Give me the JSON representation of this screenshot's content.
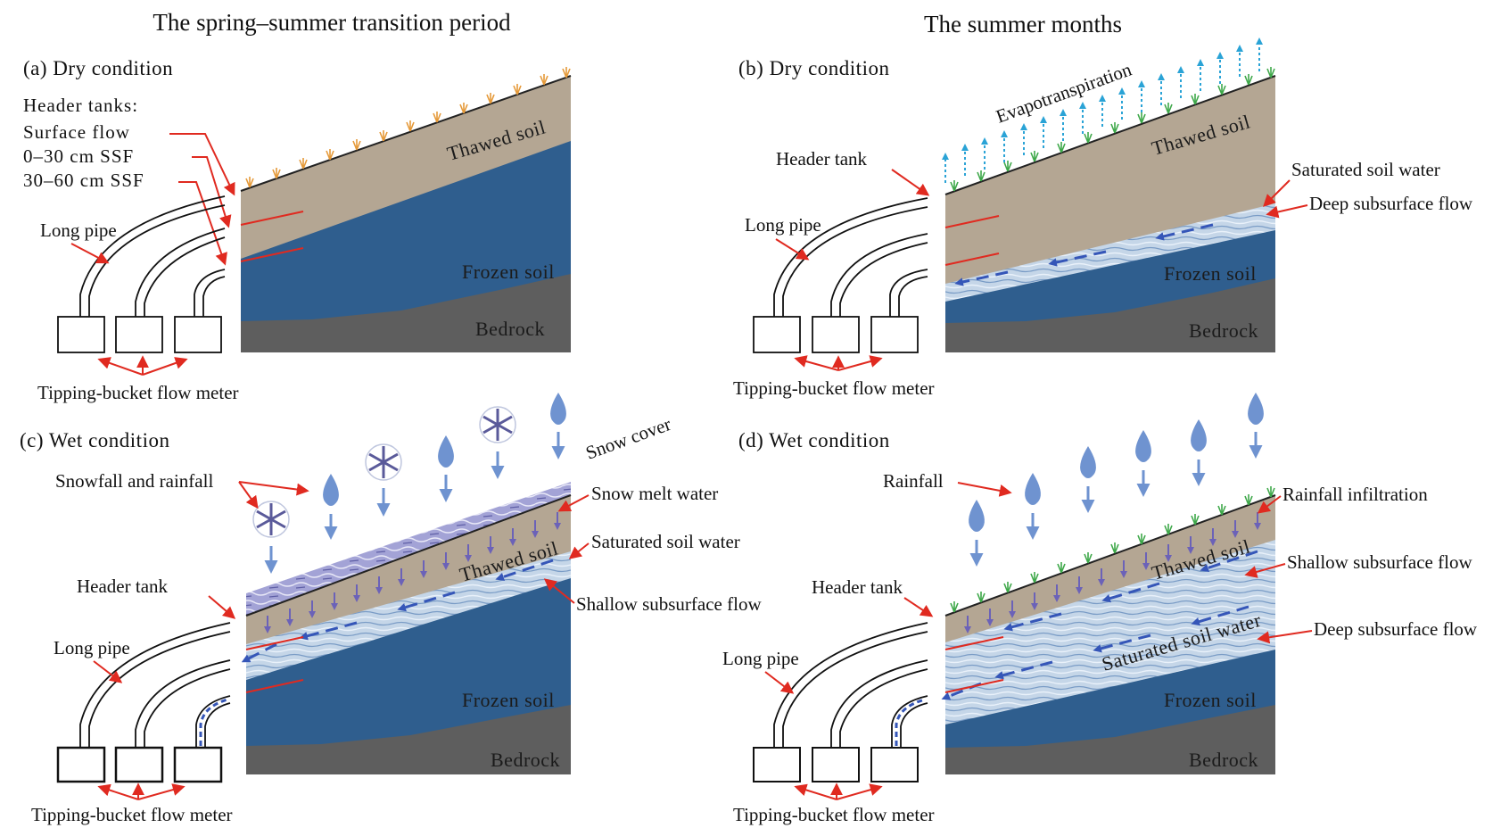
{
  "titles": {
    "left": "The spring–summer transition period",
    "right": "The summer months"
  },
  "panels": {
    "a": {
      "title": "(a) Dry condition",
      "header_tanks": "Header tanks:",
      "surface_flow": "Surface  flow",
      "ssf_0_30": "0–30  cm  SSF",
      "ssf_30_60": "30–60  cm  SSF",
      "long_pipe": "Long pipe",
      "thawed_soil": "Thawed  soil",
      "frozen_soil": "Frozen  soil",
      "bedrock": "Bedrock",
      "meter": "Tipping-bucket flow meter"
    },
    "b": {
      "title": "(b) Dry condition",
      "evapotranspiration": "Evapotranspiration",
      "header_tank": "Header tank",
      "long_pipe": "Long pipe",
      "thawed_soil": "Thawed  soil",
      "saturated_soil_water": "Saturated soil water",
      "deep_subsurface_flow": "Deep subsurface flow",
      "frozen_soil": "Frozen  soil",
      "bedrock": "Bedrock",
      "meter": "Tipping-bucket flow meter"
    },
    "c": {
      "title": "(c)  Wet condition",
      "snow_cover": "Snow cover",
      "snowfall_rainfall": "Snowfall  and  rainfall",
      "snow_melt_water": "Snow melt water",
      "saturated_soil_water": "Saturated soil water",
      "shallow_subsurface_flow": "Shallow subsurface flow",
      "header_tank": "Header tank",
      "long_pipe": "Long pipe",
      "thawed_soil": "Thawed  soil",
      "frozen_soil": "Frozen  soil",
      "bedrock": "Bedrock",
      "meter": "Tipping-bucket flow meter"
    },
    "d": {
      "title": "(d) Wet condition",
      "rainfall": "Rainfall",
      "rainfall_infiltration": "Rainfall  infiltration",
      "shallow_subsurface_flow": "Shallow subsurface flow",
      "deep_subsurface_flow": "Deep subsurface flow",
      "saturated_soil_water": "Saturated soil water",
      "header_tank": "Header tank",
      "long_pipe": "Long pipe",
      "thawed_soil": "Thawed  soil",
      "frozen_soil": "Frozen  soil",
      "bedrock": "Bedrock",
      "meter": "Tipping-bucket flow meter"
    }
  },
  "colors": {
    "thawed_soil": "#b4a693",
    "frozen_soil": "#2f5e8e",
    "bedrock": "#5e5e5e",
    "saturated_water": "#bcd0e4",
    "arrow_red": "#e02a20",
    "flow_blue": "#3556b8",
    "rain_drop": "#6f93d0",
    "evap_arrow": "#2aa3d6",
    "grass_green": "#3fa84a",
    "grass_orange": "#e59a3a",
    "snow_cover": "#8c8cc8"
  }
}
